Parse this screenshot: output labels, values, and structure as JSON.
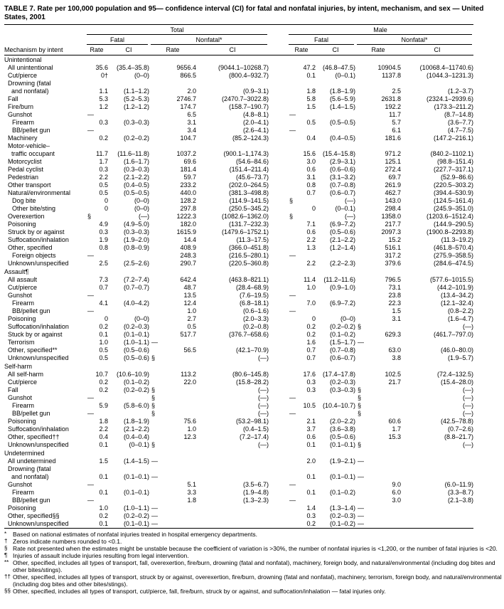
{
  "title": "TABLE 7. Rate per 100,000 population and 95— confidence interval (CI) for fatal and nonfatal injuries, by intent, mechanism, and sex — United States, 2001",
  "colors": {
    "text": "#000000",
    "background": "#ffffff",
    "rules": "#000000"
  },
  "table": {
    "header": {
      "row_label": "Mechanism by intent",
      "groups": [
        "Total",
        "Male"
      ],
      "subgroups": [
        "Fatal",
        "Nonfatal*"
      ],
      "measures": [
        "Rate",
        "CI"
      ]
    },
    "sections": [
      {
        "name": "Unintentional",
        "rows": [
          {
            "label": "All unintentional",
            "indent": 1,
            "cells": [
              "35.6",
              "(35.4–35.8)",
              "9656.4",
              "(9044.1–10268.7)",
              "47.2",
              "(46.8–47.5)",
              "10904.5",
              "(10068.4–11740.6)"
            ]
          },
          {
            "label": "Cut/pierce",
            "indent": 1,
            "cells": [
              "0†",
              "(0–0)",
              "866.5",
              "(800.4–932.7)",
              "0.1",
              "(0–0.1)",
              "1137.8",
              "(1044.3–1231.3)"
            ]
          },
          {
            "label": "Drowning (fatal",
            "label2": "and nonfatal)",
            "indent": 1,
            "cells": [
              "1.1",
              "(1.1–1.2)",
              "2.0",
              "(0.9–3.1)",
              "1.8",
              "(1.8–1.9)",
              "2.5",
              "(1.2–3.7)"
            ]
          },
          {
            "label": "Fall",
            "indent": 1,
            "cells": [
              "5.3",
              "(5.2–5.3)",
              "2746.7",
              "(2470.7–3022.8)",
              "5.8",
              "(5.6–5.9)",
              "2631.8",
              "(2324.1–2939.6)"
            ]
          },
          {
            "label": "Fire/burn",
            "indent": 1,
            "cells": [
              "1.2",
              "(1.2–1.2)",
              "174.7",
              "(158.7–190.7)",
              "1.5",
              "(1.4–1.5)",
              "192.2",
              "(173.3–211.2)"
            ]
          },
          {
            "label": "Gunshot",
            "indent": 1,
            "cells": [
              "—",
              "",
              "6.5",
              "(4.8–8.1)",
              "—",
              "",
              "11.7",
              "(8.7–14.8)"
            ]
          },
          {
            "label": "Firearm",
            "indent": 2,
            "cells": [
              "0.3",
              "(0.3–0.3)",
              "3.1",
              "(2.0–4.1)",
              "0.5",
              "(0.5–0.5)",
              "5.7",
              "(3.6–7.7)"
            ]
          },
          {
            "label": "BB/pellet gun",
            "indent": 2,
            "cells": [
              "—",
              "",
              "3.4",
              "(2.6–4.1)",
              "—",
              "",
              "6.1",
              "(4.7–7.5)"
            ]
          },
          {
            "label": "Machinery",
            "indent": 1,
            "cells": [
              "0.2",
              "(0.2–0.2)",
              "104.7",
              "(85.2–124.3)",
              "0.4",
              "(0.4–0.5)",
              "181.6",
              "(147.2–216.1)"
            ]
          },
          {
            "label": "Motor-vehicle–",
            "label2": "traffic occupant",
            "indent": 1,
            "cells": [
              "11.7",
              "(11.6–11.8)",
              "1037.2",
              "(900.1–1,174.3)",
              "15.6",
              "(15.4–15.8)",
              "971.2",
              "(840.2–1102.1)"
            ]
          },
          {
            "label": "Motorcyclist",
            "indent": 1,
            "cells": [
              "1.7",
              "(1.6–1.7)",
              "69.6",
              "(54.6–84.6)",
              "3.0",
              "(2.9–3.1)",
              "125.1",
              "(98.8–151.4)"
            ]
          },
          {
            "label": "Pedal cyclist",
            "indent": 1,
            "cells": [
              "0.3",
              "(0.3–0.3)",
              "181.4",
              "(151.4–211.4)",
              "0.6",
              "(0.6–0.6)",
              "272.4",
              "(227.7–317.1)"
            ]
          },
          {
            "label": "Pedestrian",
            "indent": 1,
            "cells": [
              "2.2",
              "(2.1–2.2)",
              "59.7",
              "(45.6–73.7)",
              "3.1",
              "(3.1–3.2)",
              "69.7",
              "(52.9–86.6)"
            ]
          },
          {
            "label": "Other transport",
            "indent": 1,
            "cells": [
              "0.5",
              "(0.4–0.5)",
              "233.2",
              "(202.0–264.5)",
              "0.8",
              "(0.7–0.8)",
              "261.9",
              "(220.5–303.2)"
            ]
          },
          {
            "label": "Natural/environmental",
            "indent": 1,
            "cells": [
              "0.5",
              "(0.5–0.5)",
              "440.0",
              "(381.3–498.8)",
              "0.7",
              "(0.6–0.7)",
              "462.7",
              "(394.4–530.9)"
            ]
          },
          {
            "label": "Dog bite",
            "indent": 2,
            "cells": [
              "0",
              "(0–0)",
              "128.2",
              "(114.9–141.5)",
              "§",
              "(—)",
              "143.0",
              "(124.5–161.4)"
            ]
          },
          {
            "label": "Other bite/sting",
            "indent": 2,
            "cells": [
              "0",
              "(0–0)",
              "297.8",
              "(250.5–345.2)",
              "0",
              "(0–0.1)",
              "298.4",
              "(245.9–351.0)"
            ]
          },
          {
            "label": "Overexertion",
            "indent": 1,
            "cells": [
              "§",
              "(—)",
              "1222.3",
              "(1082.6–1362.0)",
              "§",
              "(—)",
              "1358.0",
              "(1203.6–1512.4)"
            ]
          },
          {
            "label": "Poisoning",
            "indent": 1,
            "cells": [
              "4.9",
              "(4.9–5.0)",
              "182.0",
              "(131.7–232.3)",
              "7.1",
              "(6.9–7.2)",
              "217.7",
              "(144.9–290.5)"
            ]
          },
          {
            "label": "Struck by or against",
            "indent": 1,
            "cells": [
              "0.3",
              "(0.3–0.3)",
              "1615.9",
              "(1479.6–1752.1)",
              "0.6",
              "(0.5–0.6)",
              "2097.3",
              "(1900.8–2293.8)"
            ]
          },
          {
            "label": "Suffocation/inhalation",
            "indent": 1,
            "cells": [
              "1.9",
              "(1.9–2.0)",
              "14.4",
              "(11.3–17.5)",
              "2.2",
              "(2.1–2.2)",
              "15.2",
              "(11.3–19.2)"
            ]
          },
          {
            "label": "Other, specified",
            "indent": 1,
            "cells": [
              "0.8",
              "(0.8–0.9)",
              "408.9",
              "(366.0–451.8)",
              "1.3",
              "(1.2–1.4)",
              "516.1",
              "(461.8–570.4)"
            ]
          },
          {
            "label": "Foreign objects",
            "indent": 2,
            "cells": [
              "—",
              "",
              "248.3",
              "(216.5–280.1)",
              "—",
              "",
              "317.2",
              "(275.9–358.5)"
            ]
          },
          {
            "label": "Unknown/unspecified",
            "indent": 1,
            "cells": [
              "2.5",
              "(2.5–2.6)",
              "290.7",
              "(220.5–360.8)",
              "2.2",
              "(2.2–2.3)",
              "379.6",
              "(284.6–474.5)"
            ]
          }
        ]
      },
      {
        "name": "Assault¶",
        "rows": [
          {
            "label": "All assault",
            "indent": 1,
            "cells": [
              "7.3",
              "(7.2–7.4)",
              "642.4",
              "(463.8–821.1)",
              "11.4",
              "(11.2–11.6)",
              "796.5",
              "(577.6–1015.5)"
            ]
          },
          {
            "label": "Cut/pierce",
            "indent": 1,
            "cells": [
              "0.7",
              "(0.7–0.7)",
              "48.7",
              "(28.4–68.9)",
              "1.0",
              "(0.9–1.0)",
              "73.1",
              "(44.2–101.9)"
            ]
          },
          {
            "label": "Gunshot",
            "indent": 1,
            "cells": [
              "—",
              "",
              "13.5",
              "(7.6–19.5)",
              "—",
              "",
              "23.8",
              "(13.4–34.2)"
            ]
          },
          {
            "label": "Firearm",
            "indent": 2,
            "cells": [
              "4.1",
              "(4.0–4.2)",
              "12.4",
              "(6.8–18.1)",
              "7.0",
              "(6.9–7.2)",
              "22.3",
              "(12.1–32.4)"
            ]
          },
          {
            "label": "BB/pellet gun",
            "indent": 2,
            "cells": [
              "—",
              "",
              "1.0",
              "(0.6–1.6)",
              "—",
              "",
              "1.5",
              "(0.8–2.2)"
            ]
          },
          {
            "label": "Poisoning",
            "indent": 1,
            "cells": [
              "0",
              "(0–0)",
              "2.7",
              "(2.0–3.3)",
              "0",
              "(0–0)",
              "3.1",
              "(1.6–4.7)"
            ]
          },
          {
            "label": "Suffocation/inhalation",
            "indent": 1,
            "cells": [
              "0.2",
              "(0.2–0.3)",
              "0.5",
              "(0.2–0.8)",
              "0.2",
              "(0.2–0.2)",
              "§",
              "(—)"
            ]
          },
          {
            "label": "Stuck by or against",
            "indent": 1,
            "cells": [
              "0.1",
              "(0.1–0.1)",
              "517.7",
              "(376.7–658.6)",
              "0.2",
              "(0.1–0.2)",
              "629.3",
              "(461.7–797.0)"
            ]
          },
          {
            "label": "Terrorism",
            "indent": 1,
            "cells": [
              "1.0",
              "(1.0–1.1)",
              "—",
              "",
              "1.6",
              "(1.5–1.7)",
              "—",
              ""
            ]
          },
          {
            "label": "Other, specified**",
            "indent": 1,
            "cells": [
              "0.5",
              "(0.5–0.6)",
              "56.5",
              "(42.1–70.9)",
              "0.7",
              "(0.7–0.8)",
              "63.0",
              "(46.0–80.0)"
            ]
          },
          {
            "label": "Unknown/unspecified",
            "indent": 1,
            "cells": [
              "0.5",
              "(0.5–0.6)",
              "§",
              "(—)",
              "0.7",
              "(0.6–0.7)",
              "3.8",
              "(1.9–5.7)"
            ]
          }
        ]
      },
      {
        "name": "Self-harm",
        "rows": [
          {
            "label": "All self-harm",
            "indent": 1,
            "cells": [
              "10.7",
              "(10.6–10.9)",
              "113.2",
              "(80.6–145.8)",
              "17.6",
              "(17.4–17.8)",
              "102.5",
              "(72.4–132.5)"
            ]
          },
          {
            "label": "Cut/pierce",
            "indent": 1,
            "cells": [
              "0.2",
              "(0.1–0.2)",
              "22.0",
              "(15.8–28.2)",
              "0.3",
              "(0.2–0.3)",
              "21.7",
              "(15.4–28.0)"
            ]
          },
          {
            "label": "Fall",
            "indent": 1,
            "cells": [
              "0.2",
              "(0.2–0.2)",
              "§",
              "(—)",
              "0.3",
              "(0.3–0.3)",
              "§",
              "(—)"
            ]
          },
          {
            "label": "Gunshot",
            "indent": 1,
            "cells": [
              "—",
              "",
              "§",
              "(—)",
              "—",
              "",
              "§",
              "(—)"
            ]
          },
          {
            "label": "Firearm",
            "indent": 2,
            "cells": [
              "5.9",
              "(5.8–6.0)",
              "§",
              "(—)",
              "10.5",
              "(10.4–10.7)",
              "§",
              "(—)"
            ]
          },
          {
            "label": "BB/pellet gun",
            "indent": 2,
            "cells": [
              "—",
              "",
              "§",
              "(—)",
              "—",
              "",
              "§",
              "(—)"
            ]
          },
          {
            "label": "Poisoning",
            "indent": 1,
            "cells": [
              "1.8",
              "(1.8–1.9)",
              "75.6",
              "(53.2–98.1)",
              "2.1",
              "(2.0–2.2)",
              "60.6",
              "(42.5–78.8)"
            ]
          },
          {
            "label": "Suffocation/inhalation",
            "indent": 1,
            "cells": [
              "2.2",
              "(2.1–2.2)",
              "1.0",
              "(0.4–1.5)",
              "3.7",
              "(3.6–3.8)",
              "1.7",
              "(0.7–2.6)"
            ]
          },
          {
            "label": "Other, specified††",
            "indent": 1,
            "cells": [
              "0.4",
              "(0.4–0.4)",
              "12.3",
              "(7.2–17.4)",
              "0.6",
              "(0.5–0.6)",
              "15.3",
              "(8.8–21.7)"
            ]
          },
          {
            "label": "Unknown/unspecified",
            "indent": 1,
            "cells": [
              "0.1",
              "(0–0.1)",
              "§",
              "(—)",
              "0.1",
              "(0.1–0.1)",
              "§",
              "(—)"
            ]
          }
        ]
      },
      {
        "name": "Undetermined",
        "rows": [
          {
            "label": "All undetermined",
            "indent": 1,
            "cells": [
              "1.5",
              "(1.4–1.5)",
              "—",
              "",
              "2.0",
              "(1.9–2.1)",
              "—",
              ""
            ]
          },
          {
            "label": "Drowning (fatal",
            "label2": "and nonfatal)",
            "indent": 1,
            "cells": [
              "0.1",
              "(0.1–0.1)",
              "—",
              "",
              "0.1",
              "(0.1–0.1)",
              "—",
              ""
            ]
          },
          {
            "label": "Gunshot",
            "indent": 1,
            "cells": [
              "—",
              "",
              "5.1",
              "(3.5–6.7)",
              "—",
              "",
              "9.0",
              "(6.0–11.9)"
            ]
          },
          {
            "label": "Firearm",
            "indent": 2,
            "cells": [
              "0.1",
              "(0.1–0.1)",
              "3.3",
              "(1.9–4.8)",
              "0.1",
              "(0.1–0.2)",
              "6.0",
              "(3.3–8.7)"
            ]
          },
          {
            "label": "BB/pellet gun",
            "indent": 2,
            "cells": [
              "—",
              "",
              "1.8",
              "(1.3–2.3)",
              "—",
              "",
              "3.0",
              "(2.1–3.8)"
            ]
          },
          {
            "label": "Poisoning",
            "indent": 1,
            "cells": [
              "1.0",
              "(1.0–1.1)",
              "—",
              "",
              "1.4",
              "(1.3–1.4)",
              "—",
              ""
            ]
          },
          {
            "label": "Other, specified§§",
            "indent": 1,
            "cells": [
              "0.2",
              "(0.2–0.2)",
              "—",
              "",
              "0.3",
              "(0.2–0.3)",
              "—",
              ""
            ]
          },
          {
            "label": "Unknown/unspecified",
            "indent": 1,
            "cells": [
              "0.1",
              "(0.1–0.1)",
              "—",
              "",
              "0.2",
              "(0.1–0.2)",
              "—",
              ""
            ]
          }
        ]
      }
    ]
  },
  "footnotes": [
    {
      "marker": "*",
      "text": "Based on national estimates of nonfatal injuries treated in hospital emergency departments."
    },
    {
      "marker": "†",
      "text": "Zeros indicate numbers rounded to <0.1."
    },
    {
      "marker": "§",
      "text": "Rate not presented when the estimates might be unstable because the coefficient of variation is >30%, the number of nonfatal injuries is <1,200, or the number of fatal injuries is <20."
    },
    {
      "marker": "¶",
      "text": "Injuries of assault include injuries resulting from legal intervention."
    },
    {
      "marker": "**",
      "text": "Other, specified, includes all types of transport, fall, overexertion, fire/burn, drowning (fatal and nonfatal), machinery, foreign body, and natural/environmental (including dog bites and other bites/stings)."
    },
    {
      "marker": "††",
      "text": "Other, specified, includes all types of transport, struck by or against, overexertion, fire/burn, drowning (fatal and nonfatal), machinery, terrorism, foreign body, and natural/environmental (including dog bites and other bites/stings)."
    },
    {
      "marker": "§§",
      "text": "Other, specified, includes all types of transport, cut/pierce, fall, fire/burn, struck by or against, and suffocation/inhalation — fatal injuries only."
    }
  ]
}
